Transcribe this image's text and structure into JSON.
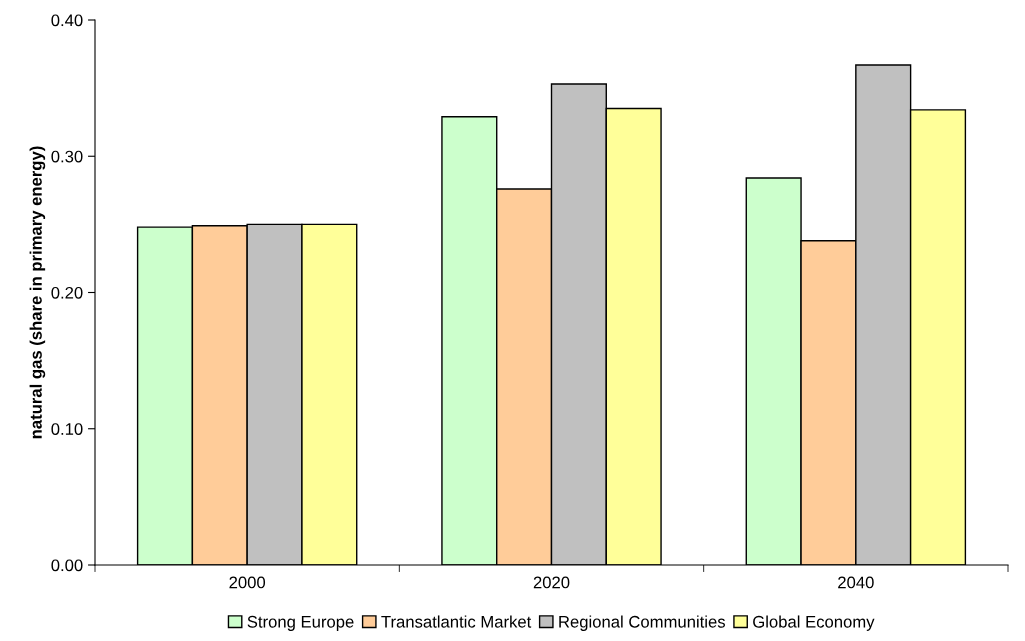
{
  "chart_data": {
    "type": "bar",
    "ylabel": "natural gas (share in primary energy)",
    "categories": [
      "2000",
      "2020",
      "2040"
    ],
    "series": [
      {
        "name": "Strong Europe",
        "color": "#ccffcc",
        "values": [
          0.248,
          0.329,
          0.284
        ]
      },
      {
        "name": "Transatlantic Market",
        "color": "#ffcc99",
        "values": [
          0.249,
          0.276,
          0.238
        ]
      },
      {
        "name": "Regional Communities",
        "color": "#c0c0c0",
        "values": [
          0.25,
          0.353,
          0.367
        ]
      },
      {
        "name": "Global Economy",
        "color": "#ffff99",
        "values": [
          0.25,
          0.335,
          0.334
        ]
      }
    ],
    "ylim": [
      0,
      0.4
    ],
    "yticks": [
      {
        "value": 0,
        "label": "0.00"
      },
      {
        "value": 0.1,
        "label": "0.10"
      },
      {
        "value": 0.2,
        "label": "0.20"
      },
      {
        "value": 0.3,
        "label": "0.30"
      },
      {
        "value": 0.4,
        "label": "0.40"
      }
    ],
    "grid": false,
    "legend": "bottom"
  }
}
